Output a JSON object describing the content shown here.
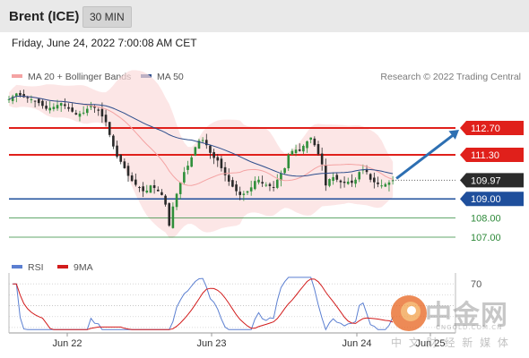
{
  "header": {
    "title": "Brent (ICE)",
    "timeframe": "30 MIN"
  },
  "timestamp": "Friday, June 24, 2022 7:00:08 AM CET",
  "legend_main": [
    {
      "label": "MA 20 + Bollinger Bands",
      "color": "#f4a3a3"
    },
    {
      "label": "MA 50",
      "color": "#2c4d8c"
    }
  ],
  "legend_rsi": [
    {
      "label": "RSI",
      "color": "#5b7fd1"
    },
    {
      "label": "9MA",
      "color": "#d21c1c"
    }
  ],
  "credit": "Research © 2022 Trading Central",
  "watermark": {
    "big": "中金网",
    "domain": "CNGOLD.COM.CN",
    "tagline": "中 文 财 经 新 媒 体"
  },
  "chart_data": [
    {
      "type": "candlestick",
      "instrument": "Brent (ICE)",
      "interval": "30 MIN",
      "x_ticks": [
        "Jun 22",
        "Jun 23",
        "Jun 24",
        "Jun 25"
      ],
      "ylim": [
        106.3,
        114.8
      ],
      "current_price": "109.97",
      "levels": [
        {
          "value": 112.7,
          "label": "112.70",
          "style": "resistance",
          "color": "#e0201b"
        },
        {
          "value": 111.3,
          "label": "111.30",
          "style": "resistance",
          "color": "#e0201b"
        },
        {
          "value": 109.0,
          "label": "109.00",
          "style": "pivot",
          "color": "#1f4f9c"
        },
        {
          "value": 108.0,
          "label": "108.00",
          "style": "support",
          "color": "#2e8a3a"
        },
        {
          "value": 107.0,
          "label": "107.00",
          "style": "support",
          "color": "#2e8a3a"
        }
      ],
      "price_path": [
        [
          0,
          114.2
        ],
        [
          4,
          114.5
        ],
        [
          8,
          114.3
        ],
        [
          12,
          114.2
        ],
        [
          16,
          114.0
        ],
        [
          20,
          113.7
        ],
        [
          24,
          113.8
        ],
        [
          28,
          114.0
        ],
        [
          32,
          113.7
        ],
        [
          36,
          113.4
        ],
        [
          40,
          113.5
        ],
        [
          44,
          113.9
        ],
        [
          48,
          113.6
        ],
        [
          52,
          113.0
        ],
        [
          55,
          112.0
        ],
        [
          58,
          111.2
        ],
        [
          61,
          110.8
        ],
        [
          64,
          110.2
        ],
        [
          67,
          109.8
        ],
        [
          70,
          109.6
        ],
        [
          73,
          109.3
        ],
        [
          76,
          109.7
        ],
        [
          79,
          109.5
        ],
        [
          82,
          109.2
        ],
        [
          84,
          108.7
        ],
        [
          86,
          107.6
        ],
        [
          88,
          108.6
        ],
        [
          91,
          109.6
        ],
        [
          94,
          110.4
        ],
        [
          97,
          110.9
        ],
        [
          100,
          111.7
        ],
        [
          103,
          112.2
        ],
        [
          106,
          111.8
        ],
        [
          109,
          111.2
        ],
        [
          112,
          111.0
        ],
        [
          115,
          110.4
        ],
        [
          118,
          109.9
        ],
        [
          121,
          109.5
        ],
        [
          124,
          109.2
        ],
        [
          127,
          109.3
        ],
        [
          130,
          109.6
        ],
        [
          133,
          110.1
        ],
        [
          136,
          109.8
        ],
        [
          139,
          109.7
        ],
        [
          142,
          109.6
        ],
        [
          145,
          110.2
        ],
        [
          148,
          110.6
        ],
        [
          150,
          111.3
        ],
        [
          153,
          111.6
        ],
        [
          156,
          111.5
        ],
        [
          159,
          111.9
        ],
        [
          162,
          112.2
        ],
        [
          165,
          111.6
        ],
        [
          168,
          110.8
        ],
        [
          170,
          109.7
        ],
        [
          173,
          110.2
        ],
        [
          176,
          110.0
        ],
        [
          179,
          109.8
        ],
        [
          182,
          109.9
        ],
        [
          185,
          109.8
        ],
        [
          188,
          110.4
        ],
        [
          191,
          110.6
        ],
        [
          194,
          110.0
        ],
        [
          197,
          109.8
        ],
        [
          200,
          109.7
        ],
        [
          203,
          109.8
        ],
        [
          206,
          109.97
        ]
      ],
      "projection": {
        "from": 109.97,
        "to": 112.7
      }
    },
    {
      "type": "line",
      "indicator": "RSI",
      "series": [
        {
          "name": "RSI"
        },
        {
          "name": "9MA"
        }
      ],
      "y_ticks": [
        "70"
      ],
      "ylim": [
        25,
        80
      ]
    }
  ]
}
